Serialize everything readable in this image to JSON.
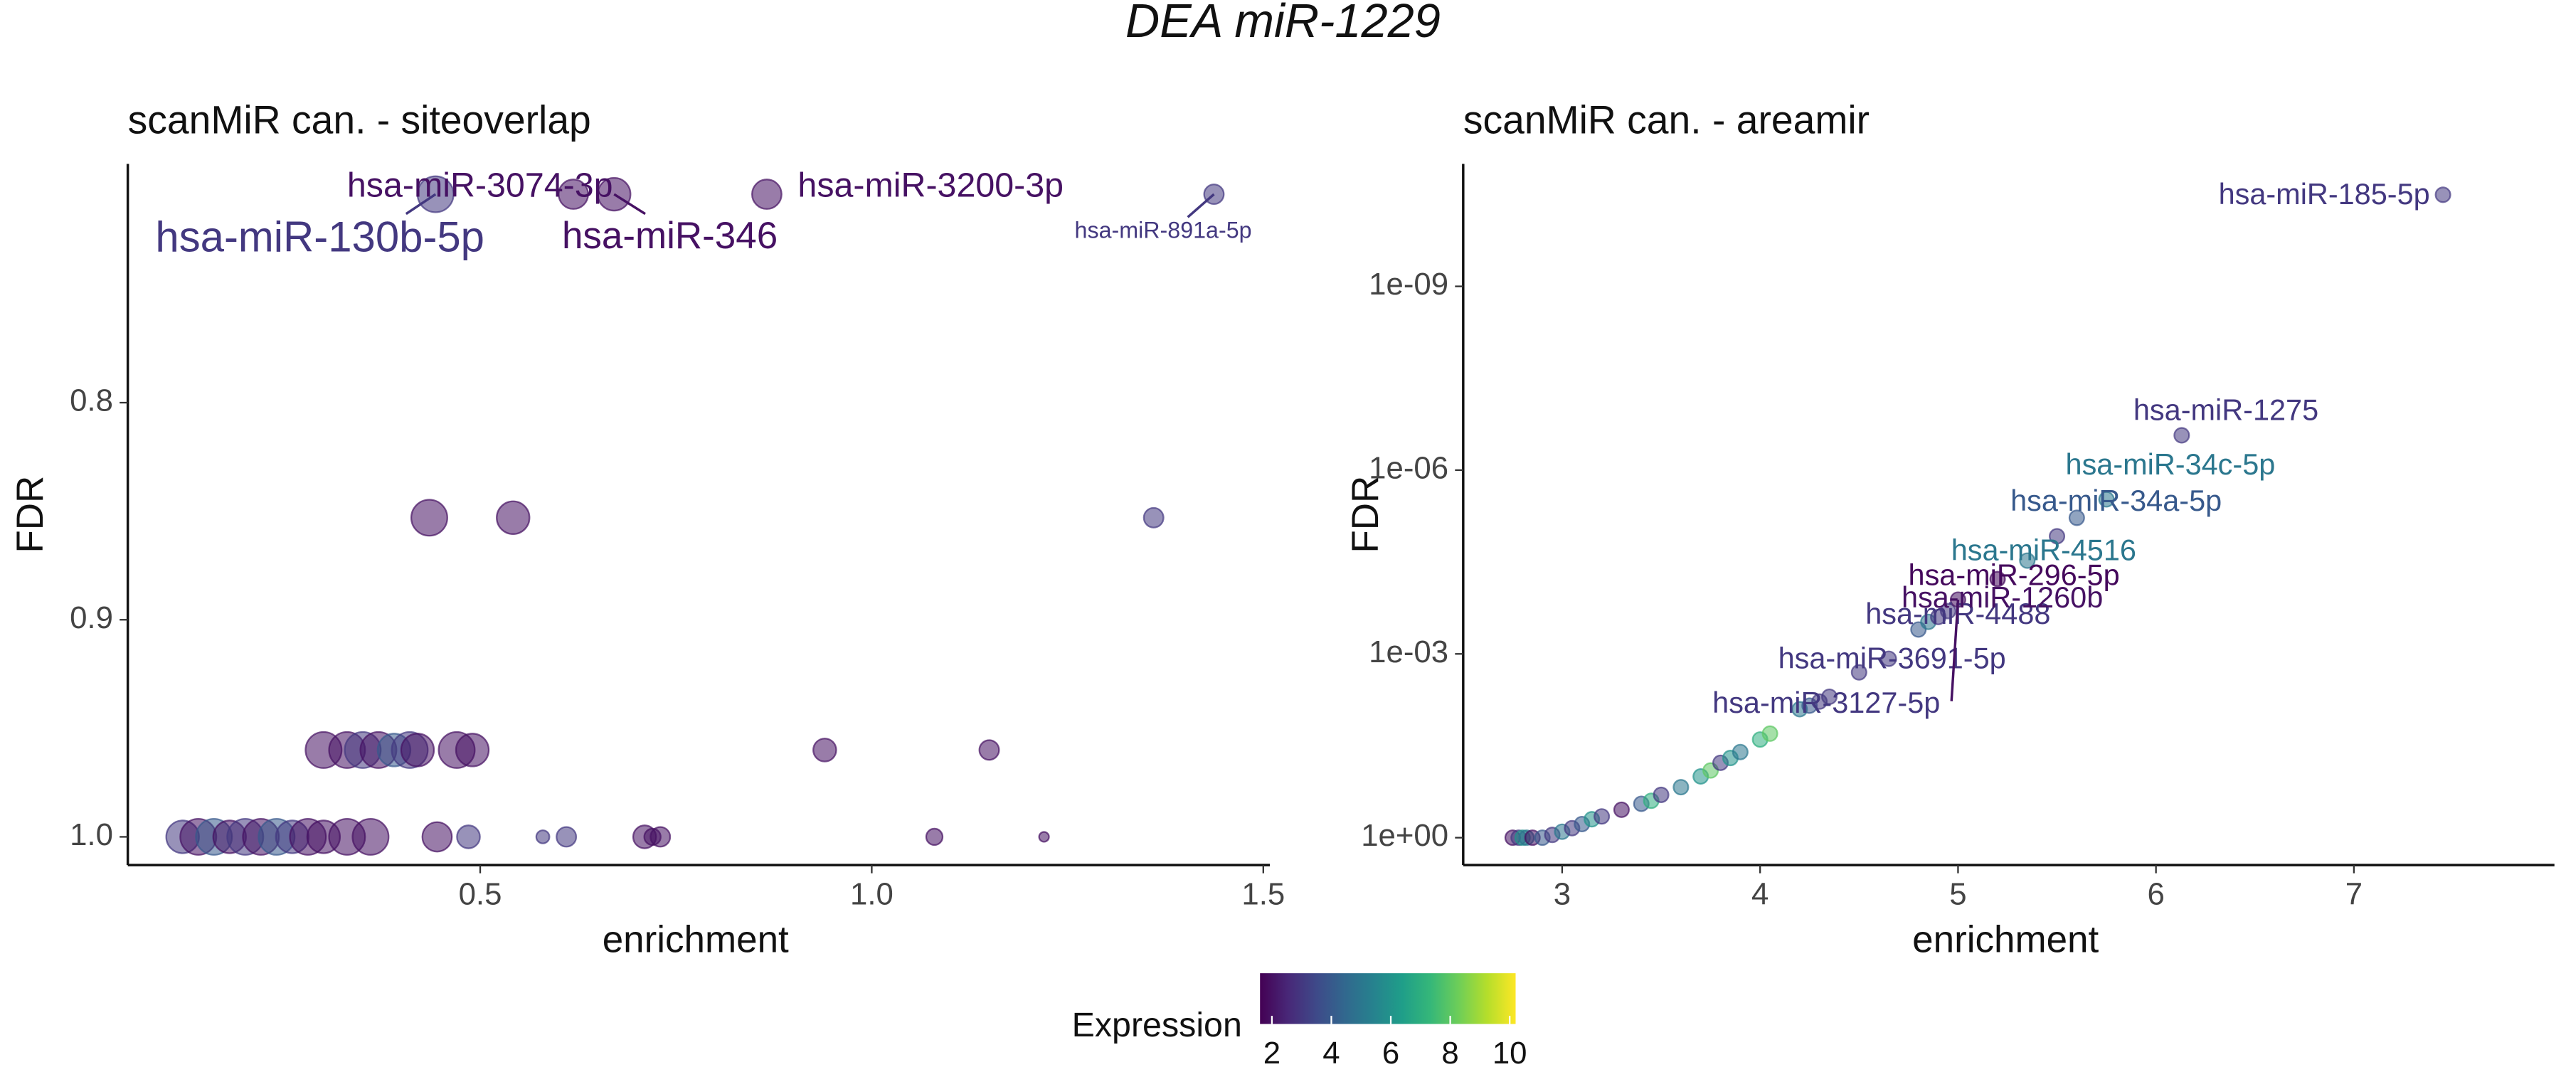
{
  "title": "DEA miR-1229",
  "chart_data": [
    {
      "type": "scatter",
      "title": "scanMiR can. - siteoverlap",
      "x_label": "enrichment",
      "y_label": "FDR",
      "xlim": [
        0.05,
        1.5
      ],
      "ylim": [
        1.013,
        0.69
      ],
      "xticks": [
        0.5,
        {
          "value": 1,
          "label": "1.0"
        },
        1.5
      ],
      "yticks": [
        0.8,
        0.9,
        {
          "value": 1,
          "label": "1.0"
        }
      ],
      "x": [
        0.443,
        0.619,
        0.671,
        0.866,
        1.437,
        0.435,
        0.542,
        1.36,
        0.3,
        0.33,
        0.35,
        0.37,
        0.39,
        0.41,
        0.42,
        0.47,
        0.49,
        0.94,
        1.15,
        0.12,
        0.14,
        0.16,
        0.18,
        0.2,
        0.22,
        0.24,
        0.26,
        0.28,
        0.3,
        0.33,
        0.36,
        0.445,
        0.485,
        0.58,
        0.61,
        0.71,
        0.72,
        0.73,
        1.08,
        1.22
      ],
      "y": [
        0.704,
        0.704,
        0.704,
        0.704,
        0.704,
        0.853,
        0.853,
        0.853,
        0.96,
        0.96,
        0.96,
        0.96,
        0.96,
        0.96,
        0.96,
        0.96,
        0.96,
        0.96,
        0.96,
        1.0,
        1.0,
        1.0,
        1.0,
        1.0,
        1.0,
        1.0,
        1.0,
        1.0,
        1.0,
        1.0,
        1.0,
        1.0,
        1.0,
        1.0,
        1.0,
        1.0,
        1.0,
        1.0,
        1.0,
        1.0
      ],
      "sizes": [
        10,
        8,
        9,
        8,
        5,
        10,
        9,
        5,
        10,
        10,
        10,
        10,
        9,
        10,
        9,
        10,
        9,
        6,
        5,
        9,
        10,
        10,
        9,
        10,
        10,
        10,
        9,
        10,
        9,
        10,
        10,
        8,
        6,
        3,
        5,
        6,
        4,
        5,
        4,
        2
      ],
      "expression": [
        3,
        2,
        2,
        2,
        3,
        2,
        2,
        3,
        2,
        2,
        3,
        2,
        4,
        3,
        2,
        2,
        2,
        2,
        2,
        3,
        2,
        4,
        2,
        3,
        2,
        4,
        3,
        2,
        2,
        2,
        2,
        2,
        3,
        3,
        3,
        2,
        2,
        2,
        2,
        2
      ],
      "labels": [
        "hsa-miR-130b-5p",
        "hsa-miR-3074-3p",
        "hsa-miR-346",
        "hsa-miR-3200-3p",
        "hsa-miR-891a-5p",
        null,
        null,
        null,
        null,
        null,
        null,
        null,
        null,
        null,
        null,
        null,
        null,
        null,
        null,
        null,
        null,
        null,
        null,
        null,
        null,
        null,
        null,
        null,
        null,
        null,
        null,
        null,
        null,
        null,
        null,
        null,
        null,
        null,
        null,
        null
      ]
    },
    {
      "type": "scatter",
      "title": "scanMiR can. - areamir",
      "x_label": "enrichment",
      "y_label": "FDR",
      "y_log": true,
      "xlim": [
        2.5,
        7.98
      ],
      "ylim": [
        2.8,
        1e-11
      ],
      "xticks": [
        3,
        4,
        5,
        6,
        7
      ],
      "yticks": [
        {
          "value": 1,
          "label": "1e+00"
        },
        {
          "value": 0.001,
          "label": "1e-03"
        },
        {
          "value": 1e-06,
          "label": "1e-06"
        },
        {
          "value": 1e-09,
          "label": "1e-09"
        }
      ],
      "x": [
        2.75,
        2.78,
        2.8,
        2.82,
        2.85,
        2.9,
        2.95,
        3.0,
        3.05,
        3.1,
        3.15,
        3.2,
        3.3,
        3.4,
        3.45,
        3.5,
        3.6,
        3.7,
        3.75,
        3.8,
        3.85,
        3.9,
        4.0,
        4.05,
        4.2,
        4.25,
        4.3,
        4.35,
        4.5,
        4.65,
        4.8,
        4.85,
        4.9,
        4.95,
        5.0,
        5.2,
        5.35,
        5.5,
        5.6,
        5.75,
        6.13,
        7.45
      ],
      "y": [
        1,
        1,
        1,
        1,
        1,
        1,
        0.9,
        0.8,
        0.7,
        0.6,
        0.5,
        0.45,
        0.35,
        0.28,
        0.25,
        0.2,
        0.15,
        0.1,
        0.08,
        0.06,
        0.05,
        0.04,
        0.025,
        0.02,
        0.008,
        0.007,
        0.006,
        0.005,
        0.002,
        0.0012,
        0.0004,
        0.0003,
        0.00025,
        0.0002,
        0.00013,
        6e-05,
        3e-05,
        1.2e-05,
        6e-06,
        3e-06,
        2.7e-07,
        3.2e-11
      ],
      "expression": [
        2,
        3,
        6,
        5,
        2,
        4,
        3,
        5,
        3,
        4,
        6,
        3,
        2,
        4,
        7,
        3,
        5,
        6,
        8,
        3,
        6,
        5,
        7,
        8,
        5,
        4,
        3,
        3,
        3,
        3,
        4,
        5,
        3,
        3,
        2,
        1.8,
        5,
        3,
        4,
        5,
        3,
        3
      ],
      "labels": [
        null,
        null,
        null,
        null,
        null,
        null,
        null,
        null,
        null,
        null,
        null,
        null,
        null,
        null,
        null,
        null,
        null,
        null,
        null,
        null,
        null,
        null,
        null,
        null,
        null,
        null,
        null,
        null,
        "hsa-miR-3127-5p",
        "hsa-miR-3691-5p",
        null,
        null,
        null,
        "hsa-miR-4488",
        "hsa-miR-1260b",
        "hsa-miR-296-5p",
        "hsa-miR-4516",
        null,
        "hsa-miR-34a-5p",
        "hsa-miR-34c-5p",
        "hsa-miR-1275",
        "hsa-miR-185-5p"
      ]
    }
  ],
  "colorbar": {
    "title": "Expression",
    "lim": [
      1.6,
      10.2
    ],
    "ticks": [
      2,
      4,
      6,
      8,
      10
    ],
    "colors": [
      "#440154",
      "#482878",
      "#3e4a89",
      "#31688e",
      "#26828e",
      "#1f9e89",
      "#35b779",
      "#6ece58",
      "#b5de2b",
      "#fde725"
    ]
  }
}
